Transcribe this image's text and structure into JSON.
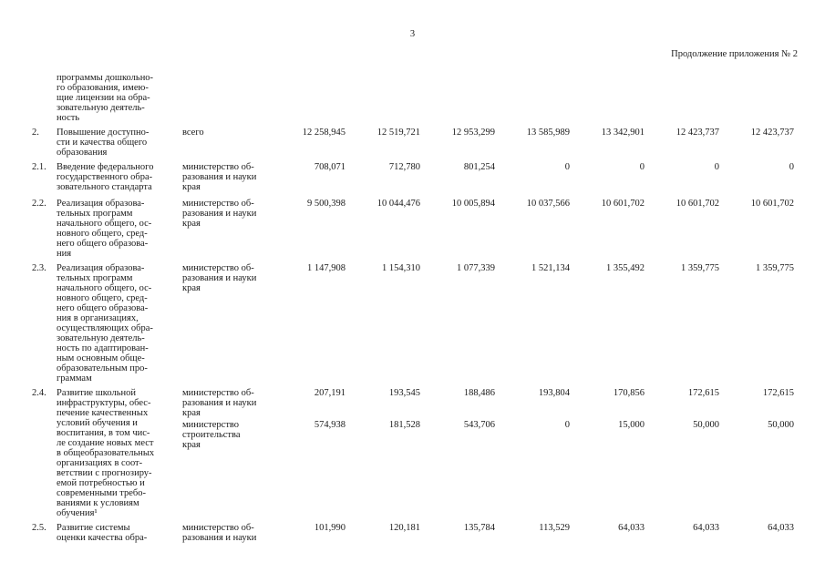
{
  "page": {
    "number": "3",
    "continuation_note": "Продолжение приложения № 2"
  },
  "table": {
    "rows": [
      {
        "index": "",
        "name": "программы дошкольно-\nго образования, имею-\nщие лицензии на обра-\nзовательную деятель-\nность"
      },
      {
        "index": "2.",
        "name": "Повышение доступно-\nсти и качества общего\nобразования",
        "entries": [
          {
            "executor": "всего",
            "values": [
              "12 258,945",
              "12 519,721",
              "12 953,299",
              "13 585,989",
              "13 342,901",
              "12 423,737",
              "12 423,737"
            ]
          }
        ]
      },
      {
        "index": "2.1.",
        "name": "Введение федерального\nгосударственного обра-\nзовательного стандарта",
        "entries": [
          {
            "executor": "министерство об-\nразования и науки\nкрая",
            "values": [
              "708,071",
              "712,780",
              "801,254",
              "0",
              "0",
              "0",
              "0"
            ]
          }
        ]
      },
      {
        "index": "2.2.",
        "name": "Реализация образова-\nтельных программ\nначального общего, ос-\nновного общего, сред-\nнего общего образова-\nния",
        "entries": [
          {
            "executor": "министерство об-\nразования и науки\nкрая",
            "values": [
              "9 500,398",
              "10 044,476",
              "10 005,894",
              "10 037,566",
              "10 601,702",
              "10 601,702",
              "10 601,702"
            ]
          }
        ]
      },
      {
        "index": "2.3.",
        "name": "Реализация образова-\nтельных программ\nначального общего, ос-\nновного общего, сред-\nнего общего образова-\nния в организациях,\nосуществляющих обра-\nзовательную деятель-\nность по адаптирован-\nным основным обще-\nобразовательным про-\nграммам",
        "entries": [
          {
            "executor": "министерство об-\nразования и науки\nкрая",
            "values": [
              "1 147,908",
              "1 154,310",
              "1 077,339",
              "1 521,134",
              "1 355,492",
              "1 359,775",
              "1 359,775"
            ]
          }
        ]
      },
      {
        "index": "2.4.",
        "name": "Развитие школьной\nинфраструктуры, обес-\nпечение качественных\nусловий обучения и\nвоспитания, в том чис-\nле создание новых мест\nв общеобразовательных\nорганизациях в соот-\nветствии с прогнозиру-\nемой потребностью и\nсовременными требо-\nваниями к условиям\nобучения¹",
        "entries": [
          {
            "executor": "министерство об-\nразования и науки\nкрая",
            "values": [
              "207,191",
              "193,545",
              "188,486",
              "193,804",
              "170,856",
              "172,615",
              "172,615"
            ]
          },
          {
            "executor": "министерство\nстроительства\nкрая",
            "values": [
              "574,938",
              "181,528",
              "543,706",
              "0",
              "15,000",
              "50,000",
              "50,000"
            ]
          }
        ]
      },
      {
        "index": "2.5.",
        "name": "Развитие системы\nоценки качества обра-",
        "entries": [
          {
            "executor": "министерство об-\nразования и науки",
            "values": [
              "101,990",
              "120,181",
              "135,784",
              "113,529",
              "64,033",
              "64,033",
              "64,033"
            ]
          }
        ]
      }
    ]
  }
}
